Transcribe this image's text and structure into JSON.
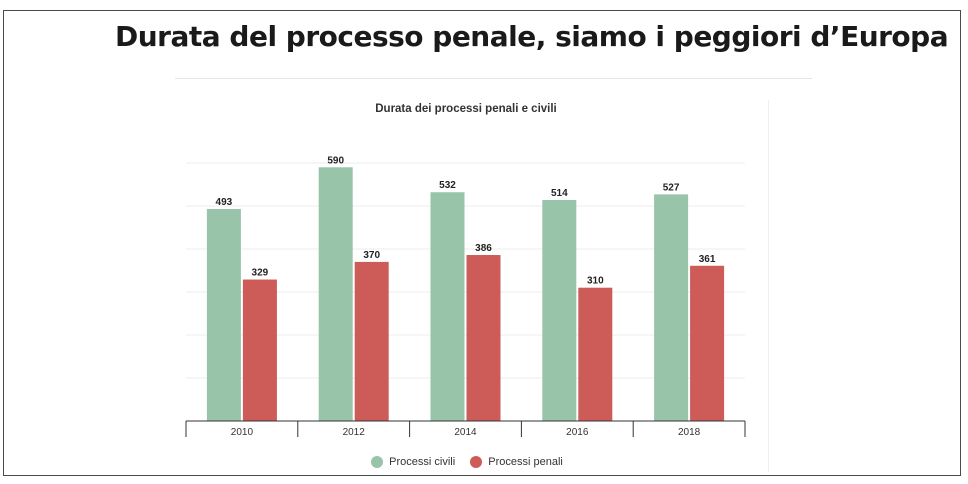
{
  "headline": "Durata del processo penale, siamo i peggiori d’Europa",
  "chart_data": {
    "type": "bar",
    "title": "Durata dei processi penali e civili",
    "categories": [
      "2010",
      "2012",
      "2014",
      "2016",
      "2018"
    ],
    "series": [
      {
        "name": "Processi civili",
        "color": "#98c4a9",
        "values": [
          493,
          590,
          532,
          514,
          527
        ]
      },
      {
        "name": "Processi penali",
        "color": "#cd5b58",
        "values": [
          329,
          370,
          386,
          310,
          361
        ]
      }
    ],
    "ylim": [
      0,
      600
    ],
    "grid": true,
    "legend_position": "bottom",
    "xlabel": "",
    "ylabel": ""
  }
}
